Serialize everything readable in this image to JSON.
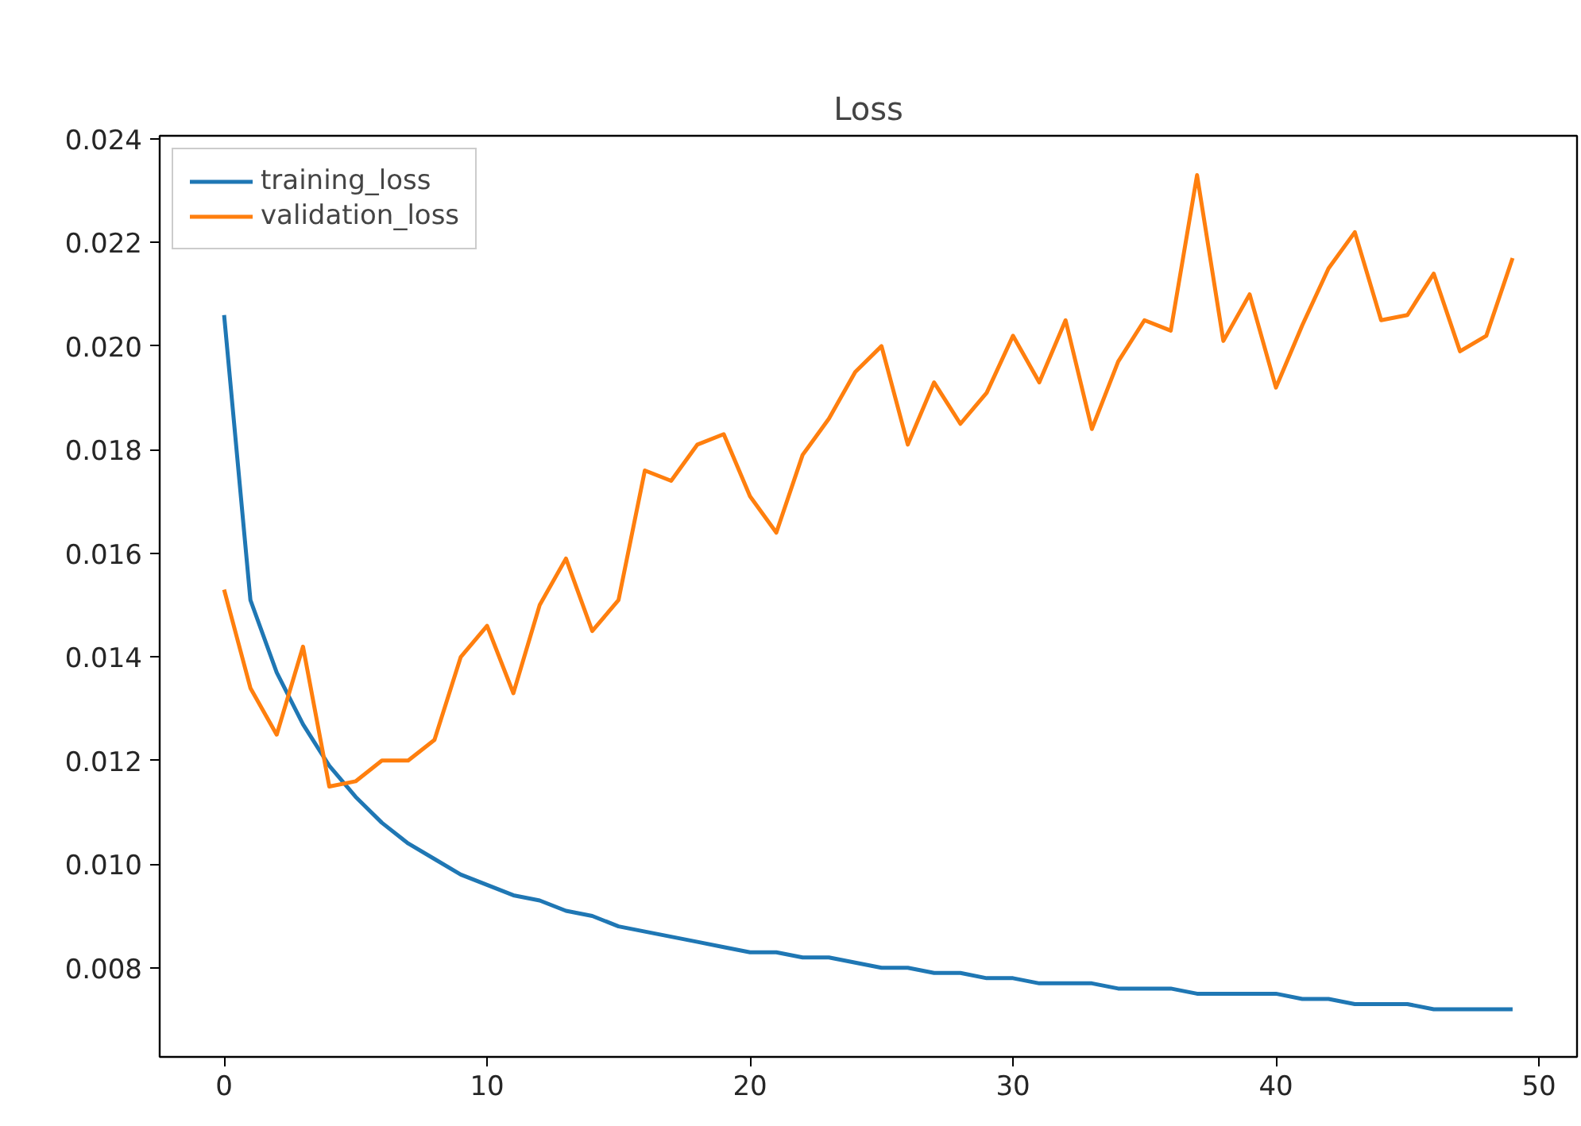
{
  "chart_data": {
    "type": "line",
    "title": "Loss",
    "x": [
      0,
      1,
      2,
      3,
      4,
      5,
      6,
      7,
      8,
      9,
      10,
      11,
      12,
      13,
      14,
      15,
      16,
      17,
      18,
      19,
      20,
      21,
      22,
      23,
      24,
      25,
      26,
      27,
      28,
      29,
      30,
      31,
      32,
      33,
      34,
      35,
      36,
      37,
      38,
      39,
      40,
      41,
      42,
      43,
      44,
      45,
      46,
      47,
      48,
      49
    ],
    "series": [
      {
        "name": "training_loss",
        "color": "#1f77b4",
        "values": [
          0.0206,
          0.0151,
          0.0137,
          0.0127,
          0.0119,
          0.0113,
          0.0108,
          0.0104,
          0.0101,
          0.0098,
          0.0096,
          0.0094,
          0.0093,
          0.0091,
          0.009,
          0.0088,
          0.0087,
          0.0086,
          0.0085,
          0.0084,
          0.0083,
          0.0083,
          0.0082,
          0.0082,
          0.0081,
          0.008,
          0.008,
          0.0079,
          0.0079,
          0.0078,
          0.0078,
          0.0077,
          0.0077,
          0.0077,
          0.0076,
          0.0076,
          0.0076,
          0.0075,
          0.0075,
          0.0075,
          0.0075,
          0.0074,
          0.0074,
          0.0073,
          0.0073,
          0.0073,
          0.0072,
          0.0072,
          0.0072,
          0.0072
        ]
      },
      {
        "name": "validation_loss",
        "color": "#ff7f0e",
        "values": [
          0.0153,
          0.0134,
          0.0125,
          0.0142,
          0.0115,
          0.0116,
          0.012,
          0.012,
          0.0124,
          0.014,
          0.0146,
          0.0133,
          0.015,
          0.0159,
          0.0145,
          0.0151,
          0.0176,
          0.0174,
          0.0181,
          0.0183,
          0.0171,
          0.0164,
          0.0179,
          0.0186,
          0.0195,
          0.02,
          0.0181,
          0.0193,
          0.0185,
          0.0191,
          0.0202,
          0.0193,
          0.0205,
          0.0184,
          0.0197,
          0.0205,
          0.0203,
          0.0233,
          0.0201,
          0.021,
          0.0192,
          0.0204,
          0.0215,
          0.0222,
          0.0205,
          0.0206,
          0.0214,
          0.0199,
          0.0202,
          0.0217
        ]
      }
    ],
    "xlim": [
      -2.45,
      51.45
    ],
    "ylim": [
      0.00628,
      0.02406
    ],
    "xticks": [
      0,
      10,
      20,
      30,
      40,
      50
    ],
    "yticks": [
      {
        "value": 0.008,
        "label": "0.008"
      },
      {
        "value": 0.01,
        "label": "0.010"
      },
      {
        "value": 0.012,
        "label": "0.012"
      },
      {
        "value": 0.014,
        "label": "0.014"
      },
      {
        "value": 0.016,
        "label": "0.016"
      },
      {
        "value": 0.018,
        "label": "0.018"
      },
      {
        "value": 0.02,
        "label": "0.020"
      },
      {
        "value": 0.022,
        "label": "0.022"
      },
      {
        "value": 0.024,
        "label": "0.024"
      }
    ],
    "legend": "top left",
    "grid": false,
    "line_style": "solid",
    "marker": "none"
  }
}
